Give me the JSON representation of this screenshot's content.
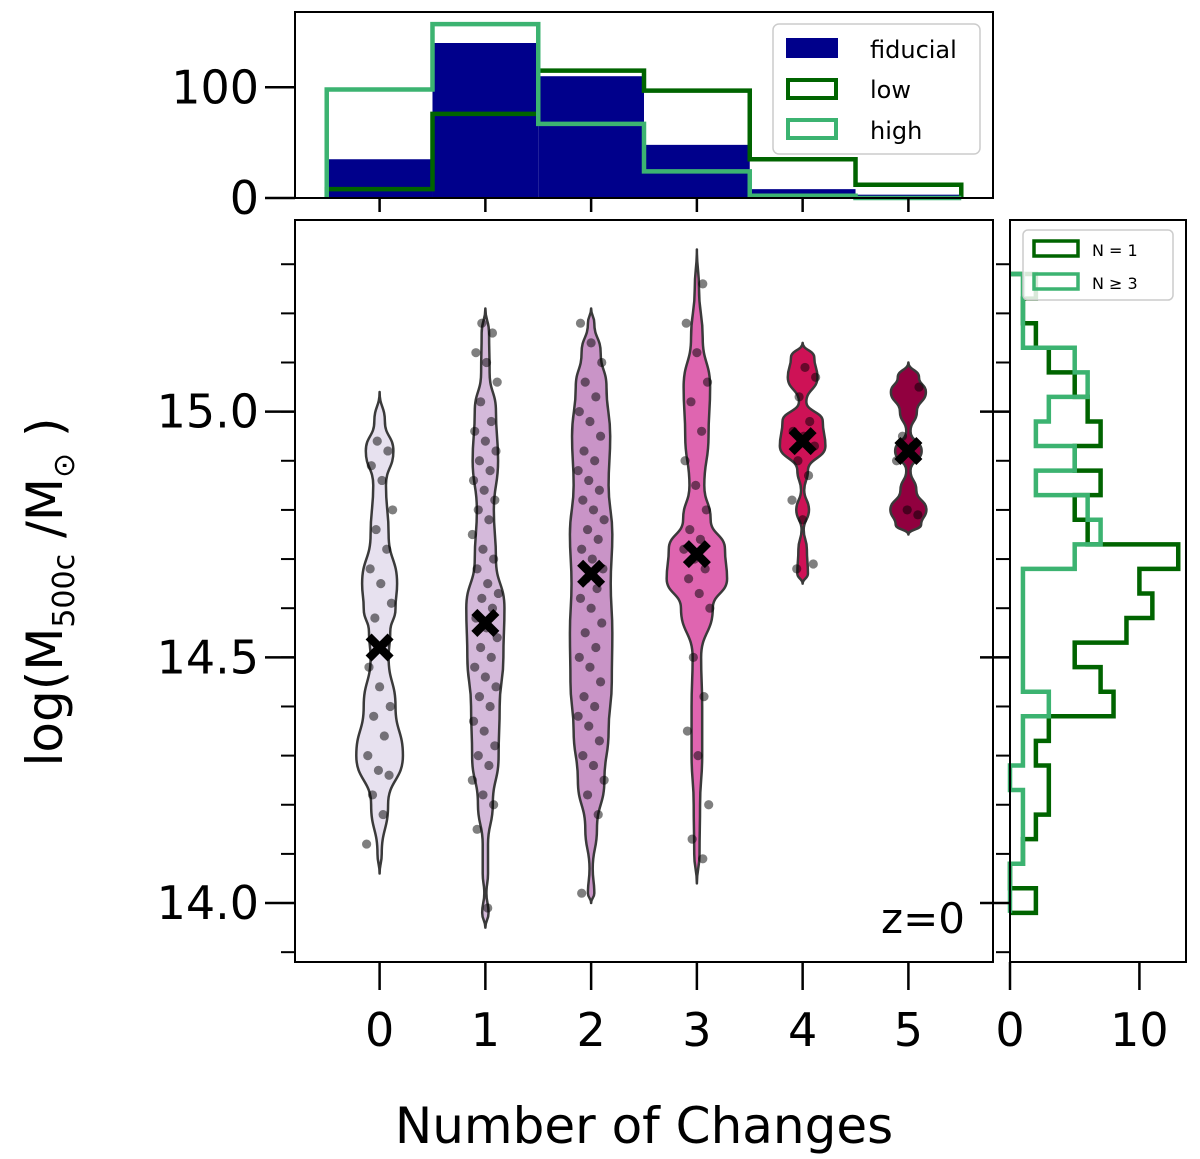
{
  "chart_data": [
    {
      "id": "top_hist",
      "type": "histogram",
      "xlabel": "",
      "ylabel": "",
      "xlim": [
        -0.8,
        5.8
      ],
      "ylim": [
        0,
        168
      ],
      "yticks": [
        "0",
        "100"
      ],
      "legend": {
        "placement": "top-right"
      },
      "bin_edges": [
        -0.5,
        0.5,
        1.5,
        2.5,
        3.5,
        4.5,
        5.5
      ],
      "series": [
        {
          "name": "fiducial",
          "style": "filled",
          "color": "#00008b",
          "values": [
            35,
            140,
            110,
            48,
            8,
            3
          ]
        },
        {
          "name": "low",
          "style": "step",
          "color": "#006400",
          "values": [
            8,
            76,
            115,
            97,
            35,
            12
          ]
        },
        {
          "name": "high",
          "style": "step",
          "color": "#3cb371",
          "values": [
            98,
            157,
            67,
            24,
            2,
            0
          ]
        }
      ]
    },
    {
      "id": "violin",
      "type": "violin",
      "xlabel": "Number of Changes",
      "ylabel_parts": {
        "prefix": "log(M",
        "subscript": "500c",
        "middle": " /M",
        "subscript2": "⊙",
        "suffix": " )"
      },
      "xlim": [
        -0.8,
        5.8
      ],
      "ylim": [
        13.88,
        15.39
      ],
      "xticks": [
        "0",
        "1",
        "2",
        "3",
        "4",
        "5"
      ],
      "yticks": [
        "14.0",
        "14.5",
        "15.0"
      ],
      "annotation": "z=0",
      "categories": [
        0,
        1,
        2,
        3,
        4,
        5
      ],
      "colors": [
        "#e7e1ef",
        "#d4b9da",
        "#c994c7",
        "#df65b0",
        "#ce1256",
        "#91003f"
      ],
      "medians": [
        14.52,
        14.57,
        14.67,
        14.71,
        14.94,
        14.92
      ],
      "violins": [
        {
          "y": [
            14.06,
            14.1,
            14.2,
            14.3,
            14.4,
            14.5,
            14.55,
            14.6,
            14.65,
            14.75,
            14.85,
            14.92,
            14.98,
            15.04
          ],
          "w": [
            0,
            0.04,
            0.16,
            0.44,
            0.3,
            0.17,
            0.2,
            0.3,
            0.33,
            0.17,
            0.12,
            0.26,
            0.1,
            0
          ]
        },
        {
          "y": [
            13.95,
            13.98,
            14.02,
            14.06,
            14.12,
            14.2,
            14.3,
            14.4,
            14.5,
            14.6,
            14.7,
            14.8,
            14.9,
            15.0,
            15.08,
            15.16,
            15.21
          ],
          "w": [
            0,
            0.06,
            0.02,
            0.05,
            0.05,
            0.14,
            0.25,
            0.27,
            0.34,
            0.36,
            0.2,
            0.16,
            0.24,
            0.2,
            0.08,
            0.07,
            0
          ]
        },
        {
          "y": [
            14.0,
            14.02,
            14.07,
            14.15,
            14.25,
            14.35,
            14.45,
            14.55,
            14.65,
            14.75,
            14.85,
            14.95,
            15.05,
            15.12,
            15.18,
            15.21
          ],
          "w": [
            0,
            0.06,
            0.03,
            0.11,
            0.25,
            0.33,
            0.39,
            0.4,
            0.37,
            0.4,
            0.33,
            0.36,
            0.29,
            0.18,
            0.06,
            0
          ]
        },
        {
          "y": [
            14.04,
            14.1,
            14.2,
            14.3,
            14.4,
            14.5,
            14.6,
            14.66,
            14.72,
            14.78,
            14.85,
            14.95,
            15.05,
            15.15,
            15.25,
            15.33
          ],
          "w": [
            0,
            0.05,
            0.06,
            0.1,
            0.1,
            0.08,
            0.3,
            0.57,
            0.53,
            0.26,
            0.14,
            0.22,
            0.25,
            0.11,
            0.04,
            0
          ]
        },
        {
          "y": [
            14.65,
            14.67,
            14.72,
            14.76,
            14.8,
            14.84,
            14.88,
            14.93,
            14.98,
            15.02,
            15.07,
            15.11,
            15.14
          ],
          "w": [
            0,
            0.1,
            0.08,
            0.02,
            0.12,
            0.03,
            0.1,
            0.43,
            0.38,
            0.07,
            0.28,
            0.22,
            0
          ]
        },
        {
          "y": [
            14.75,
            14.77,
            14.8,
            14.84,
            14.88,
            14.92,
            14.96,
            15.0,
            15.04,
            15.07,
            15.1
          ],
          "w": [
            0,
            0.24,
            0.34,
            0.15,
            0.04,
            0.25,
            0.04,
            0.16,
            0.33,
            0.2,
            0
          ]
        }
      ],
      "points": [
        [
          14.12,
          14.18,
          14.22,
          14.26,
          14.27,
          14.3,
          14.34,
          14.38,
          14.4,
          14.44,
          14.48,
          14.53,
          14.58,
          14.61,
          14.65,
          14.68,
          14.72,
          14.76,
          14.8,
          14.86,
          14.89,
          14.92,
          14.94
        ],
        [
          13.99,
          14.15,
          14.2,
          14.22,
          14.25,
          14.28,
          14.3,
          14.32,
          14.35,
          14.37,
          14.4,
          14.42,
          14.44,
          14.46,
          14.48,
          14.5,
          14.52,
          14.54,
          14.56,
          14.58,
          14.6,
          14.62,
          14.63,
          14.65,
          14.68,
          14.7,
          14.72,
          14.75,
          14.78,
          14.8,
          14.82,
          14.84,
          14.86,
          14.88,
          14.9,
          14.92,
          14.94,
          14.96,
          14.98,
          15.02,
          15.06,
          15.1,
          15.12,
          15.16,
          15.18
        ],
        [
          14.02,
          14.18,
          14.22,
          14.25,
          14.28,
          14.3,
          14.33,
          14.36,
          14.38,
          14.4,
          14.42,
          14.45,
          14.48,
          14.5,
          14.52,
          14.55,
          14.57,
          14.6,
          14.62,
          14.64,
          14.66,
          14.68,
          14.7,
          14.72,
          14.74,
          14.76,
          14.78,
          14.8,
          14.82,
          14.84,
          14.86,
          14.88,
          14.9,
          14.92,
          14.95,
          14.98,
          15.0,
          15.03,
          15.06,
          15.1,
          15.14,
          15.18
        ],
        [
          14.09,
          14.13,
          14.2,
          14.3,
          14.35,
          14.42,
          14.5,
          14.6,
          14.63,
          14.66,
          14.68,
          14.7,
          14.72,
          14.74,
          14.76,
          14.8,
          14.85,
          14.9,
          14.96,
          15.02,
          15.06,
          15.12,
          15.18,
          15.26
        ],
        [
          14.68,
          14.69,
          14.78,
          14.82,
          14.87,
          14.9,
          14.93,
          14.95,
          14.96,
          14.98,
          15.03,
          15.07,
          15.09
        ],
        [
          14.79,
          14.8,
          14.9,
          14.93,
          14.95,
          15.05
        ]
      ]
    },
    {
      "id": "right_hist",
      "type": "histogram",
      "orientation": "horizontal",
      "xlim": [
        0,
        13.6
      ],
      "xticks": [
        "0",
        "10"
      ],
      "legend": {
        "placement": "top-right"
      },
      "bin_edges": [
        13.98,
        14.03,
        14.08,
        14.13,
        14.18,
        14.23,
        14.28,
        14.33,
        14.38,
        14.43,
        14.48,
        14.53,
        14.58,
        14.63,
        14.68,
        14.73,
        14.78,
        14.83,
        14.88,
        14.93,
        14.98,
        15.03,
        15.08,
        15.13,
        15.18,
        15.23,
        15.28
      ],
      "series": [
        {
          "name": "N = 1",
          "color": "#006400",
          "values": [
            2,
            0,
            1,
            2,
            3,
            3,
            2,
            3,
            8,
            7,
            5,
            9,
            11,
            10,
            13,
            6,
            5,
            7,
            5,
            7,
            6,
            5,
            3,
            2,
            1,
            2
          ]
        },
        {
          "name": "N ≥ 3",
          "color": "#3cb371",
          "values": [
            0,
            0,
            1,
            1,
            1,
            0,
            1,
            1,
            3,
            1,
            1,
            1,
            1,
            1,
            5,
            7,
            6,
            2,
            5,
            2,
            3,
            6,
            5,
            1,
            1,
            1
          ]
        }
      ]
    }
  ]
}
